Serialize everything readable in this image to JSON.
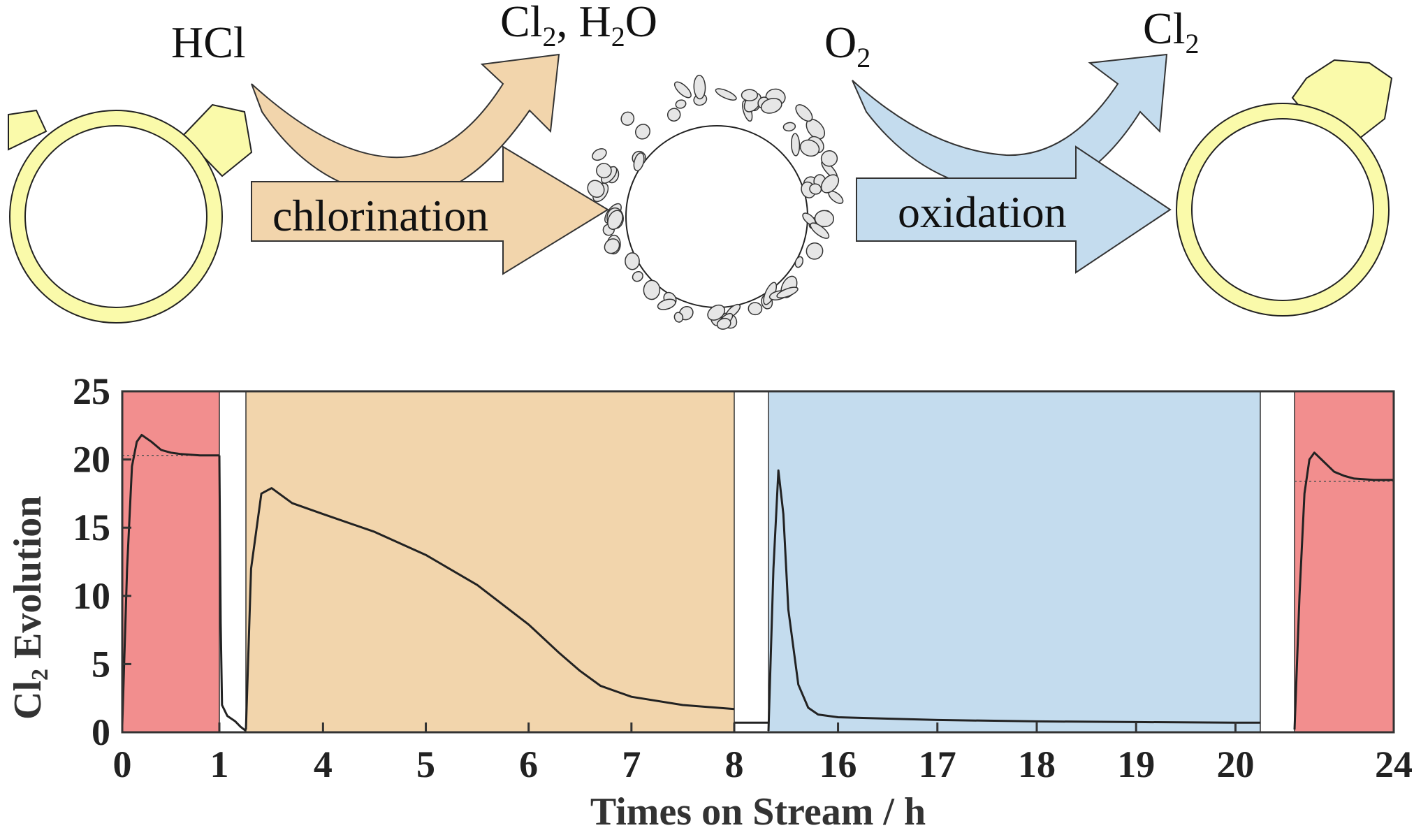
{
  "scheme": {
    "reactant_1": "HCl",
    "products_1_a": "Cl",
    "products_1_a_sub": "2",
    "products_1_b": ", H",
    "products_1_b_sub": "2",
    "products_1_c": "O",
    "step_1": "chlorination",
    "reactant_2": "O",
    "reactant_2_sub": "2",
    "product_2": "Cl",
    "product_2_sub": "2",
    "step_2": "oxidation",
    "colors": {
      "chlorination": "#f2d5ac",
      "oxidation": "#c4dcee",
      "catalyst": "#fafaaa",
      "particle": "#e6e6e6"
    }
  },
  "chart_data": {
    "type": "line",
    "ylabel_main": "Cl",
    "ylabel_sub": "2",
    "ylabel_rest": " Evolution",
    "xlabel": "Times on Stream / h",
    "ylim": [
      0,
      25
    ],
    "yticks": [
      "0",
      "5",
      "10",
      "15",
      "20",
      "25"
    ],
    "xtick_labels": [
      "0",
      "1",
      "4",
      "5",
      "6",
      "7",
      "8",
      "16",
      "17",
      "18",
      "19",
      "20",
      "24"
    ],
    "broken_axis": true,
    "regions": [
      {
        "name": "activity-1",
        "color": "#f28e8e",
        "x": [
          0,
          1
        ]
      },
      {
        "name": "chlorination",
        "color": "#f2d5ac",
        "x": [
          3.25,
          8
        ]
      },
      {
        "name": "oxidation",
        "color": "#c4dcee",
        "x": [
          15.3,
          20.25
        ]
      },
      {
        "name": "activity-2",
        "color": "#f28e8e",
        "x": [
          23.0,
          24
        ]
      }
    ],
    "series": [
      {
        "segment": "activity-1",
        "x": [
          0,
          0.05,
          0.1,
          0.15,
          0.2,
          0.3,
          0.4,
          0.5,
          0.6,
          0.8,
          1.0
        ],
        "y": [
          0.5,
          12,
          19.5,
          21.3,
          21.8,
          21.3,
          20.7,
          20.5,
          20.4,
          20.3,
          20.3
        ]
      },
      {
        "segment": "gap-1",
        "x": [
          1.0,
          1.05,
          1.1,
          1.3,
          1.6,
          1.8,
          2.0
        ],
        "y": [
          20.3,
          8,
          2.0,
          1.2,
          0.8,
          0.4,
          0.1
        ]
      },
      {
        "segment": "chlorination",
        "x": [
          3.25,
          3.3,
          3.4,
          3.5,
          3.7,
          4.0,
          4.5,
          5.0,
          5.5,
          6.0,
          6.3,
          6.5,
          6.7,
          7.0,
          7.5,
          8.0
        ],
        "y": [
          0.2,
          12,
          17.5,
          17.9,
          16.8,
          16.0,
          14.7,
          13.0,
          10.8,
          7.9,
          5.8,
          4.5,
          3.4,
          2.6,
          2.0,
          1.7
        ]
      },
      {
        "segment": "gap-2",
        "x": [
          8.0,
          8.4
        ],
        "y": [
          0.7,
          0.7
        ]
      },
      {
        "segment": "oxidation",
        "x": [
          15.3,
          15.35,
          15.4,
          15.45,
          15.5,
          15.6,
          15.7,
          15.8,
          16.0,
          16.5,
          17.0,
          18.0,
          19.0,
          20.0,
          20.25
        ],
        "y": [
          0.1,
          12,
          19.2,
          16,
          9,
          3.5,
          1.8,
          1.3,
          1.1,
          1.0,
          0.9,
          0.8,
          0.75,
          0.7,
          0.7
        ]
      },
      {
        "segment": "gap-3",
        "x": [
          20.25,
          21.5
        ],
        "y": [
          0,
          0
        ]
      },
      {
        "segment": "activity-2",
        "x": [
          23.0,
          23.05,
          23.1,
          23.15,
          23.2,
          23.3,
          23.4,
          23.5,
          23.6,
          23.8,
          24.0
        ],
        "y": [
          0.2,
          10,
          17.5,
          20.0,
          20.5,
          19.8,
          19.1,
          18.8,
          18.6,
          18.5,
          18.5
        ]
      }
    ],
    "reference_lines": [
      {
        "segment": "activity-1",
        "y": 20.3
      },
      {
        "segment": "activity-2",
        "y": 18.4
      }
    ],
    "grid": false
  }
}
